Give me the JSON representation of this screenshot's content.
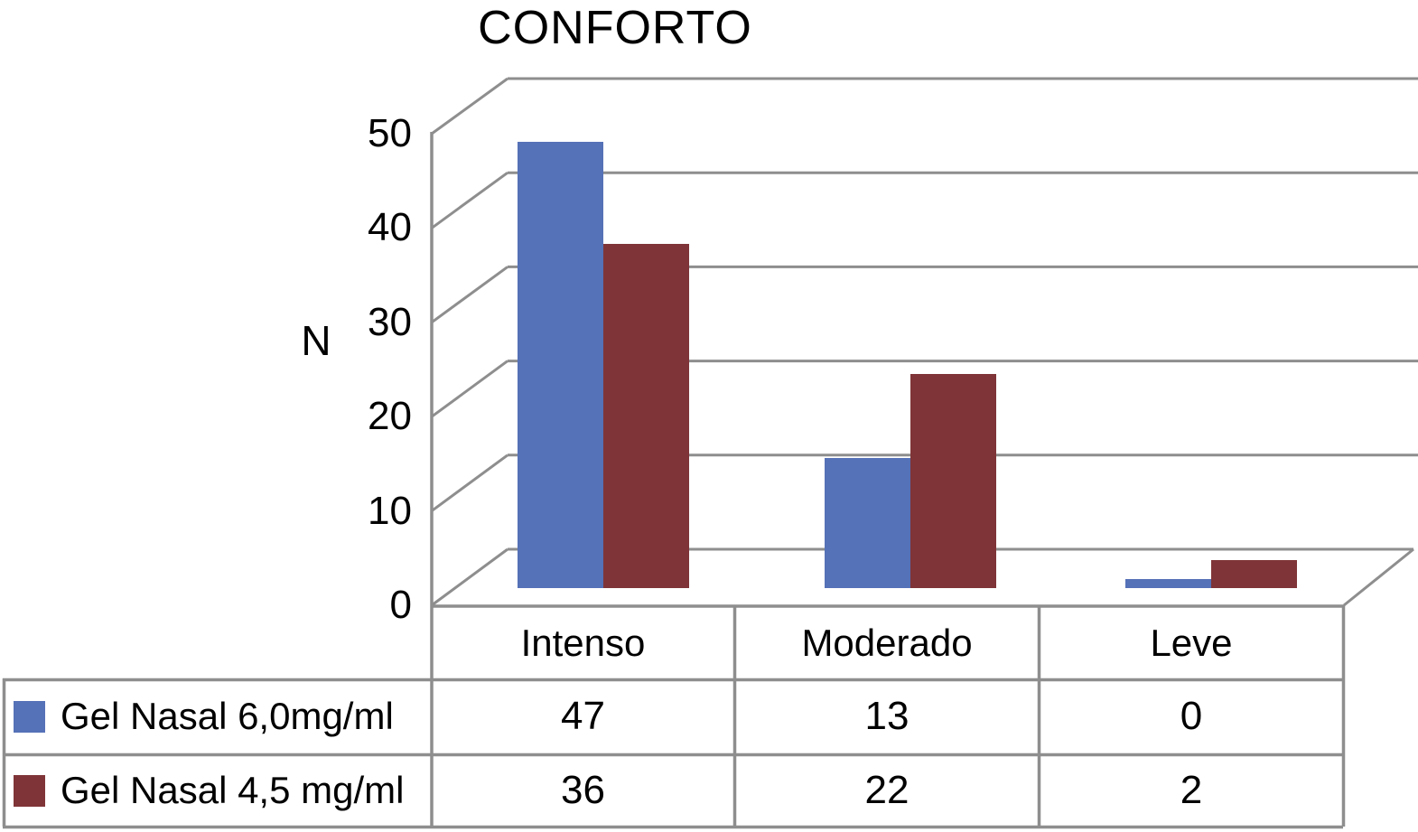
{
  "chart_data": {
    "type": "bar",
    "title": "CONFORTO",
    "ylabel": "N",
    "ylim": [
      0,
      50
    ],
    "yticks": [
      0,
      10,
      20,
      30,
      40,
      50
    ],
    "categories": [
      "Intenso",
      "Moderado",
      "Leve"
    ],
    "series": [
      {
        "name": "Gel Nasal 6,0mg/ml",
        "color": "#5571b7",
        "values": [
          47,
          13,
          0
        ]
      },
      {
        "name": "Gel Nasal 4,5 mg/ml",
        "color": "#7f3437",
        "values": [
          36,
          22,
          2
        ]
      }
    ],
    "grid": "horizontal-major",
    "legend_position": "data-table-left-column",
    "style": "3d-perspective-walls",
    "axis_color": "#8e8e8e",
    "background": "#ffffff"
  },
  "table": {
    "column_headers": [
      "Intenso",
      "Moderado",
      "Leve"
    ],
    "rows": [
      {
        "label": "Gel Nasal 6,0mg/ml",
        "values": [
          "47",
          "13",
          "0"
        ]
      },
      {
        "label": "Gel Nasal 4,5 mg/ml",
        "values": [
          "36",
          "22",
          "2"
        ]
      }
    ]
  }
}
